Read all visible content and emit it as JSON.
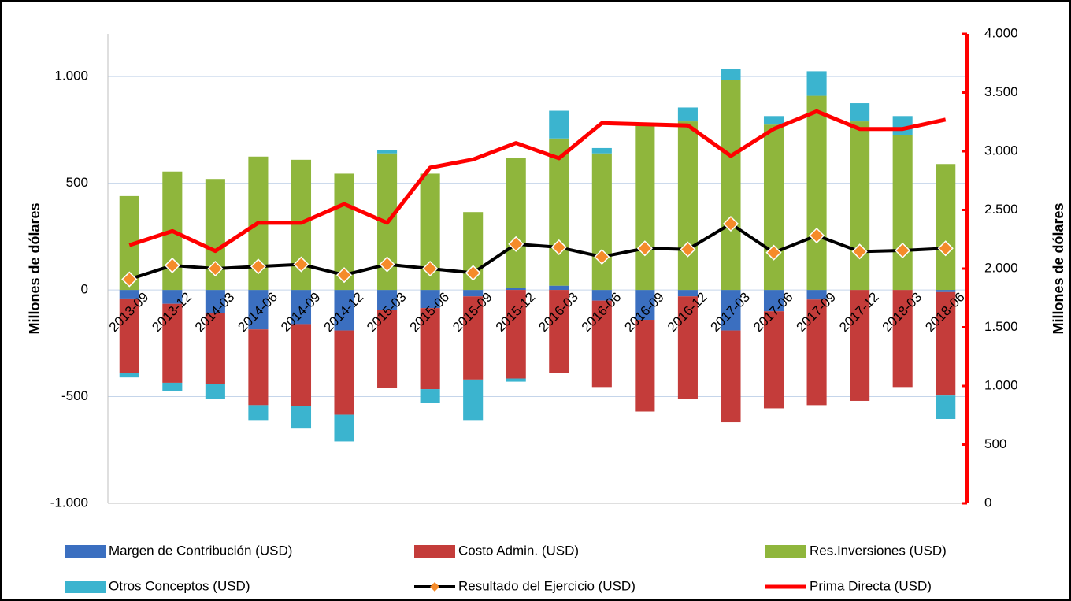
{
  "chart_data": {
    "type": "bar",
    "stacked": true,
    "y_label": "Millones de dólares",
    "y2_label": "Millones de dólares",
    "categories": [
      "2013-09",
      "2013-12",
      "2014-03",
      "2014-06",
      "2014-09",
      "2014-12",
      "2015-03",
      "2015-06",
      "2015-09",
      "2015-12",
      "2016-03",
      "2016-06",
      "2016-09",
      "2016-12",
      "2017-03",
      "2017-06",
      "2017-09",
      "2017-12",
      "2018-03",
      "2018-06"
    ],
    "ylim": [
      -1000,
      1200
    ],
    "yticks": [
      {
        "value": -1000,
        "label": "-1.000"
      },
      -500,
      0,
      500,
      {
        "value": 1000,
        "label": "1.000"
      }
    ],
    "y2lim": [
      0,
      4000
    ],
    "y2ticks": [
      0,
      500,
      {
        "value": 1000,
        "label": "1.000"
      },
      {
        "value": 1500,
        "label": "1.500"
      },
      {
        "value": 2000,
        "label": "2.000"
      },
      {
        "value": 2500,
        "label": "2.500"
      },
      {
        "value": 3000,
        "label": "3.000"
      },
      {
        "value": 3500,
        "label": "3.500"
      },
      {
        "value": 4000,
        "label": "4.000"
      }
    ],
    "y2_color": "#ff0000",
    "grid": true,
    "legend": "bottom",
    "series": [
      {
        "name": "Margen de Contribución (USD)",
        "type": "bar",
        "color": "#3b6fc0",
        "values": [
          -40,
          -65,
          -110,
          -185,
          -160,
          -190,
          -95,
          -85,
          -30,
          10,
          20,
          -50,
          -140,
          -30,
          -190,
          -100,
          -45,
          0,
          0,
          -10
        ]
      },
      {
        "name": "Costo Admin. (USD)",
        "type": "bar",
        "color": "#c43c3a",
        "values": [
          -350,
          -370,
          -330,
          -355,
          -385,
          -395,
          -365,
          -380,
          -390,
          -415,
          -390,
          -405,
          -430,
          -480,
          -430,
          -455,
          -495,
          -520,
          -455,
          -485
        ]
      },
      {
        "name": "Res.Inversiones (USD)",
        "type": "bar",
        "color": "#8fb63c",
        "values": [
          440,
          555,
          520,
          625,
          610,
          545,
          640,
          545,
          365,
          610,
          690,
          640,
          780,
          790,
          985,
          775,
          910,
          790,
          725,
          590
        ]
      },
      {
        "name": "Otros Conceptos (USD)",
        "type": "bar",
        "color": "#3bb4cf",
        "values": [
          -20,
          -40,
          -70,
          -70,
          -105,
          -125,
          15,
          -65,
          -190,
          -15,
          130,
          25,
          0,
          65,
          50,
          40,
          115,
          85,
          90,
          -110
        ]
      },
      {
        "name": "Resultado del Ejercicio (USD)",
        "type": "line",
        "color": "#000000",
        "marker_color": "#f58b2a",
        "values": [
          50,
          115,
          100,
          110,
          120,
          70,
          120,
          100,
          80,
          215,
          200,
          155,
          195,
          190,
          310,
          175,
          255,
          180,
          185,
          195
        ]
      },
      {
        "name": "Prima Directa (USD)",
        "type": "line",
        "axis": "y2",
        "color": "#ff0000",
        "values": [
          2200,
          2320,
          2150,
          2390,
          2390,
          2550,
          2390,
          2860,
          2930,
          3070,
          2940,
          3240,
          3230,
          3220,
          2960,
          3190,
          3340,
          3190,
          3190,
          3270
        ]
      }
    ]
  }
}
